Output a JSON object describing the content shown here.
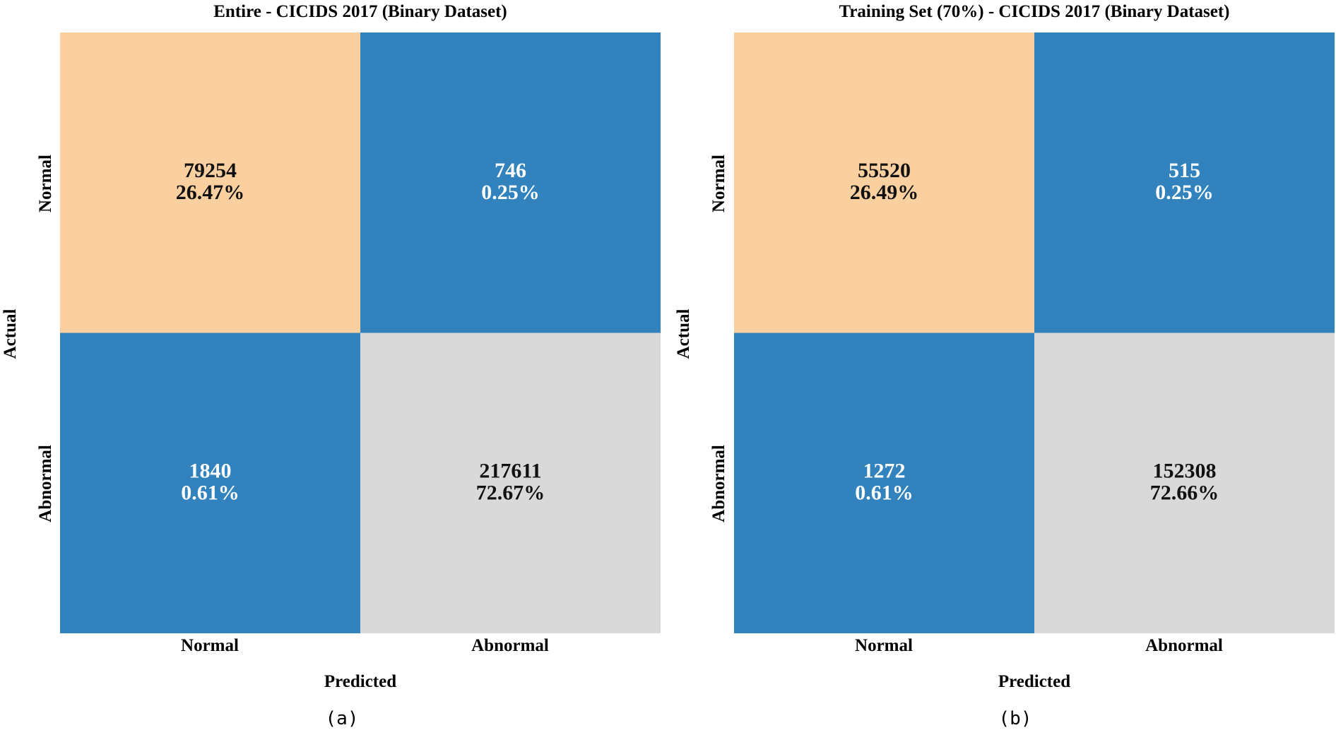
{
  "colors": {
    "true_normal": "#FBD0A1",
    "true_abnormal": "#D9D9D9",
    "misclassified": "#3182BD",
    "dark_text": "#111111",
    "light_text": "#FFFFFF"
  },
  "chart_data": [
    {
      "type": "heatmap",
      "panel": "(a)",
      "title": "Entire - CICIDS 2017 (Binary Dataset)",
      "xlabel": "Predicted",
      "ylabel": "Actual",
      "x_categories": [
        "Normal",
        "Abnormal"
      ],
      "y_categories": [
        "Normal",
        "Abnormal"
      ],
      "values": [
        [
          79254,
          746
        ],
        [
          1840,
          217611
        ]
      ],
      "percentages": [
        [
          "26.47%",
          "0.25%"
        ],
        [
          "0.61%",
          "72.67%"
        ]
      ]
    },
    {
      "type": "heatmap",
      "panel": "(b)",
      "title": "Training Set (70%) - CICIDS 2017 (Binary Dataset)",
      "xlabel": "Predicted",
      "ylabel": "Actual",
      "x_categories": [
        "Normal",
        "Abnormal"
      ],
      "y_categories": [
        "Normal",
        "Abnormal"
      ],
      "values": [
        [
          55520,
          515
        ],
        [
          1272,
          152308
        ]
      ],
      "percentages": [
        [
          "26.49%",
          "0.25%"
        ],
        [
          "0.61%",
          "72.66%"
        ]
      ]
    }
  ]
}
